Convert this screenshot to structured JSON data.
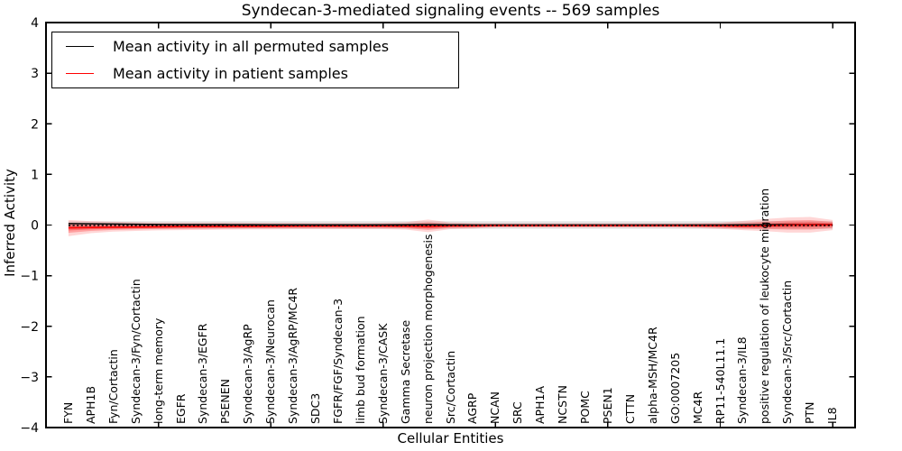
{
  "chart_data": {
    "type": "line",
    "title": "Syndecan-3-mediated signaling events -- 569 samples",
    "xlabel": "Cellular Entities",
    "ylabel": "Inferred Activity",
    "ylim": [
      -4,
      4
    ],
    "yticks": [
      4,
      3,
      2,
      1,
      0,
      -1,
      -2,
      -3,
      -4
    ],
    "xlim": [
      0,
      36
    ],
    "xtick_positions": [
      5,
      10,
      15,
      20,
      25,
      30,
      35
    ],
    "grid": false,
    "legend_position": "upper left",
    "legend": [
      {
        "label": "Mean activity in all permuted samples",
        "color": "#000000"
      },
      {
        "label": "Mean activity in patient samples",
        "color": "#ff0000"
      }
    ],
    "categories": [
      "FYN",
      "APH1B",
      "Fyn/Cortactin",
      "Syndecan-3/Fyn/Cortactin",
      "long-term memory",
      "EGFR",
      "Syndecan-3/EGFR",
      "PSENEN",
      "Syndecan-3/AgRP",
      "Syndecan-3/Neurocan",
      "Syndecan-3/AgRP/MC4R",
      "SDC3",
      "FGFR/FGF/Syndecan-3",
      "limb bud formation",
      "Syndecan-3/CASK",
      "Gamma Secretase",
      "neuron projection morphogenesis",
      "Src/Cortactin",
      "AGRP",
      "NCAN",
      "SRC",
      "APH1A",
      "NCSTN",
      "POMC",
      "PSEN1",
      "CTTN",
      "alpha-MSH/MC4R",
      "GO:0007205",
      "MC4R",
      "RP11-540L11.1",
      "Syndecan-3/IL8",
      "positive regulation of leukocyte migration",
      "Syndecan-3/Src/Cortactin",
      "PTN",
      "IL8"
    ],
    "series": [
      {
        "name": "permuted_mean",
        "legend": "Mean activity in all permuted samples",
        "color": "#000000",
        "linestyle": "solid",
        "values": [
          0.03,
          0.025,
          0.02,
          0.015,
          0.012,
          0.01,
          0.01,
          0.008,
          0.006,
          0.005,
          0.005,
          0.005,
          0.005,
          0.005,
          0.005,
          0.006,
          0.01,
          0.005,
          0.003,
          0.002,
          0.002,
          0.002,
          0.002,
          0.002,
          0.002,
          0.002,
          0.002,
          0.002,
          0.002,
          0.003,
          0.004,
          0.006,
          0.008,
          0.01,
          0.01
        ]
      },
      {
        "name": "patient_mean",
        "legend": "Mean activity in patient samples",
        "color": "#ff0000",
        "linestyle": "solid",
        "values": [
          -0.055,
          -0.05,
          -0.045,
          -0.04,
          -0.035,
          -0.032,
          -0.03,
          -0.028,
          -0.026,
          -0.024,
          -0.022,
          -0.02,
          -0.02,
          -0.02,
          -0.02,
          -0.022,
          -0.03,
          -0.018,
          -0.015,
          -0.012,
          -0.012,
          -0.012,
          -0.012,
          -0.012,
          -0.012,
          -0.012,
          -0.012,
          -0.012,
          -0.013,
          -0.015,
          -0.02,
          -0.015,
          0.0,
          0.005,
          0.005
        ]
      },
      {
        "name": "center_reference",
        "color": "#000000",
        "linestyle": "dotted",
        "values": [
          -0.008,
          -0.008,
          -0.008,
          -0.008,
          -0.008,
          -0.008,
          -0.008,
          -0.008,
          -0.008,
          -0.008,
          -0.008,
          -0.008,
          -0.008,
          -0.008,
          -0.008,
          -0.008,
          -0.008,
          -0.008,
          -0.008,
          -0.008,
          -0.008,
          -0.008,
          -0.008,
          -0.008,
          -0.008,
          -0.008,
          -0.008,
          -0.008,
          -0.008,
          -0.008,
          -0.008,
          -0.008,
          -0.008,
          -0.008,
          -0.008
        ]
      }
    ],
    "bands": [
      {
        "name": "permuted_spread",
        "color": "#000000",
        "opacity": 0.1,
        "upper": [
          0.075,
          0.075,
          0.075,
          0.075,
          0.075,
          0.075,
          0.075,
          0.075,
          0.075,
          0.075,
          0.075,
          0.075,
          0.075,
          0.075,
          0.075,
          0.075,
          0.075,
          0.075,
          0.075,
          0.075,
          0.075,
          0.075,
          0.075,
          0.075,
          0.075,
          0.075,
          0.075,
          0.075,
          0.075,
          0.075,
          0.075,
          0.075,
          0.075,
          0.075,
          0.075
        ],
        "lower": [
          -0.075,
          -0.075,
          -0.075,
          -0.075,
          -0.075,
          -0.075,
          -0.075,
          -0.075,
          -0.075,
          -0.075,
          -0.075,
          -0.075,
          -0.075,
          -0.075,
          -0.075,
          -0.075,
          -0.075,
          -0.075,
          -0.075,
          -0.075,
          -0.075,
          -0.075,
          -0.075,
          -0.075,
          -0.075,
          -0.075,
          -0.075,
          -0.075,
          -0.075,
          -0.075,
          -0.075,
          -0.075,
          -0.075,
          -0.075,
          -0.075
        ]
      },
      {
        "name": "patient_spread",
        "color": "#ff0000",
        "opacity": 0.3,
        "upper": [
          0.1,
          0.075,
          0.065,
          0.055,
          0.05,
          0.05,
          0.05,
          0.05,
          0.045,
          0.045,
          0.045,
          0.04,
          0.04,
          0.04,
          0.045,
          0.055,
          0.11,
          0.05,
          0.04,
          0.035,
          0.035,
          0.035,
          0.035,
          0.035,
          0.035,
          0.035,
          0.035,
          0.035,
          0.04,
          0.05,
          0.08,
          0.12,
          0.15,
          0.16,
          0.1
        ],
        "lower": [
          -0.22,
          -0.16,
          -0.13,
          -0.115,
          -0.105,
          -0.1,
          -0.095,
          -0.09,
          -0.085,
          -0.085,
          -0.08,
          -0.08,
          -0.08,
          -0.08,
          -0.08,
          -0.09,
          -0.14,
          -0.08,
          -0.07,
          -0.05,
          -0.05,
          -0.05,
          -0.05,
          -0.05,
          -0.05,
          -0.05,
          -0.05,
          -0.05,
          -0.06,
          -0.075,
          -0.1,
          -0.12,
          -0.15,
          -0.15,
          -0.1
        ]
      }
    ]
  }
}
